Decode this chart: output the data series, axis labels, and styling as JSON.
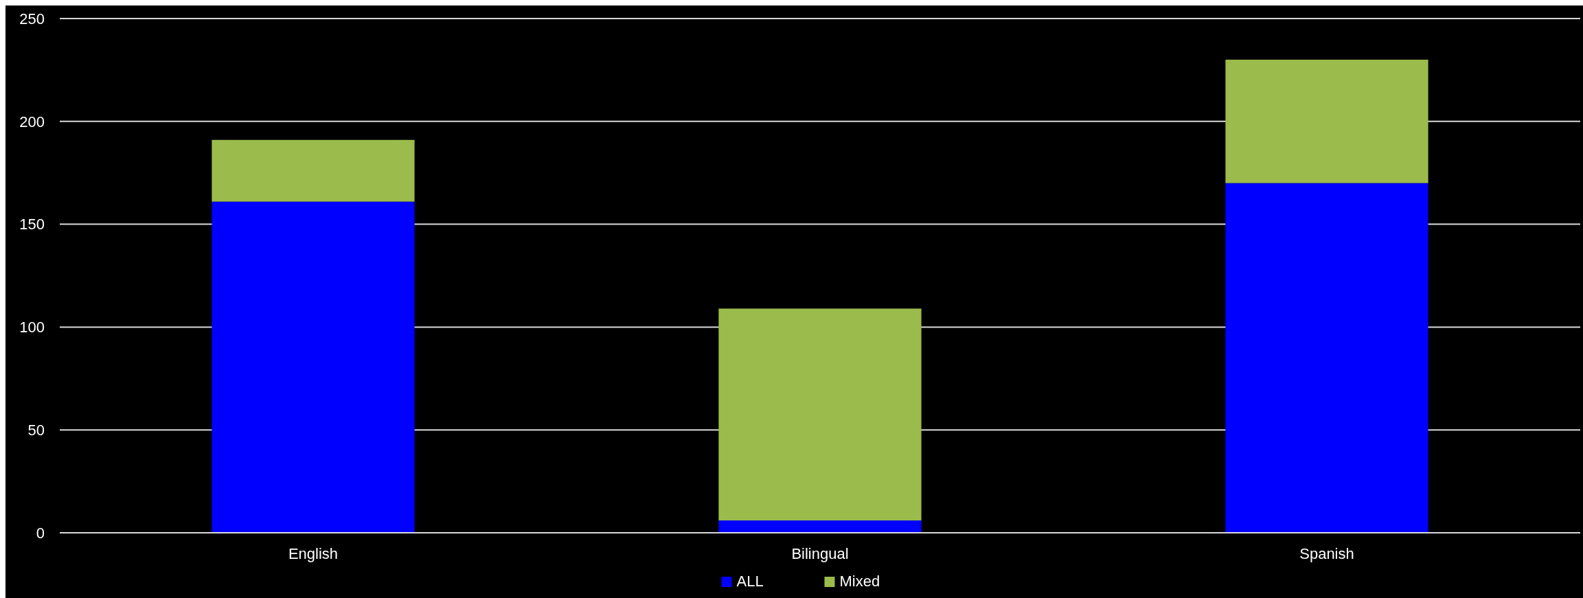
{
  "chart_data": {
    "type": "bar",
    "stacked": true,
    "categories": [
      "English",
      "Bilingual",
      "Spanish"
    ],
    "series": [
      {
        "name": "ALL",
        "color": "#0000ff",
        "values": [
          161,
          6,
          170
        ]
      },
      {
        "name": "Mixed",
        "color": "#9bbb4c",
        "values": [
          30,
          103,
          60
        ]
      }
    ],
    "ylim": [
      0,
      250
    ],
    "yticks": [
      0,
      50,
      100,
      150,
      200,
      250
    ],
    "grid": "y",
    "legend": "bottom"
  }
}
